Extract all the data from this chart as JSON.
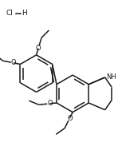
{
  "bg_color": "#ffffff",
  "line_color": "#1a1a1a",
  "line_width": 1.1,
  "font_size": 6.0,
  "fig_width": 1.48,
  "fig_height": 1.93,
  "dpi": 100,
  "xlim": [
    0,
    148
  ],
  "ylim": [
    0,
    193
  ]
}
